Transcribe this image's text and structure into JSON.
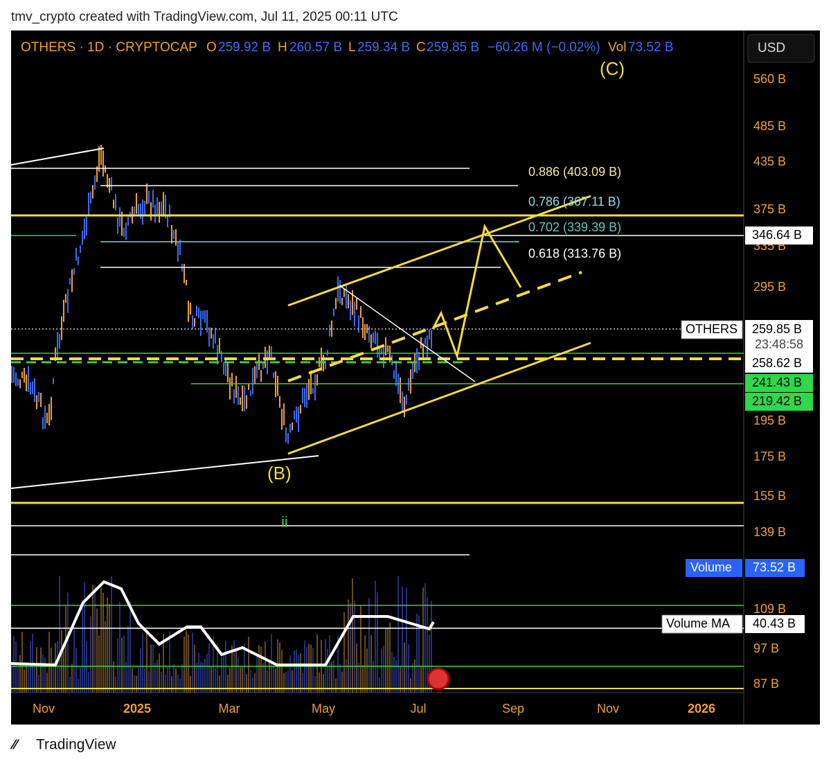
{
  "header": {
    "caption": "tmv_crypto created with TradingView.com, Jul 11, 2025 00:11 UTC"
  },
  "legend": {
    "symbol": "OTHERS · 1D · CRYPTOCAP",
    "o_label": "O",
    "open": "259.92 B",
    "h_label": "H",
    "high": "260.57 B",
    "l_label": "L",
    "low": "259.34 B",
    "c_label": "C",
    "close": "259.85 B",
    "change": "−60.26 M (−0.02%)",
    "vol_label": "Vol",
    "volume": "73.52 B"
  },
  "currency": "USD",
  "price_axis": [
    "560 B",
    "485 B",
    "435 B",
    "375 B",
    "335 B",
    "295 B",
    "195 B",
    "175 B",
    "155 B",
    "139 B",
    "109 B",
    "97 B",
    "87 B"
  ],
  "fib_levels": [
    "0.886 (403.09 B)",
    "0.786 (367.11 B)",
    "0.702 (339.39 B)",
    "0.618 (313.76 B)"
  ],
  "price_tags": {
    "symbol": "OTHERS",
    "last": "259.85 B",
    "countdown": "23:48:58",
    "level_1": "346.64 B",
    "level_2": "258.62 B",
    "level_3": "241.43 B",
    "level_4": "219.42 B"
  },
  "volume_tags": {
    "volume_label": "Volume",
    "volume": "73.52 B",
    "ma_label": "Volume MA",
    "ma": "40.43 B"
  },
  "annotations": {
    "wave_c": "(C)",
    "wave_b": "(B)",
    "wave_ii": "ii"
  },
  "time_axis": [
    "Nov",
    "2025",
    "Mar",
    "May",
    "Jul",
    "Sep",
    "Nov",
    "2026"
  ],
  "footer": {
    "brand": "TradingView"
  }
}
